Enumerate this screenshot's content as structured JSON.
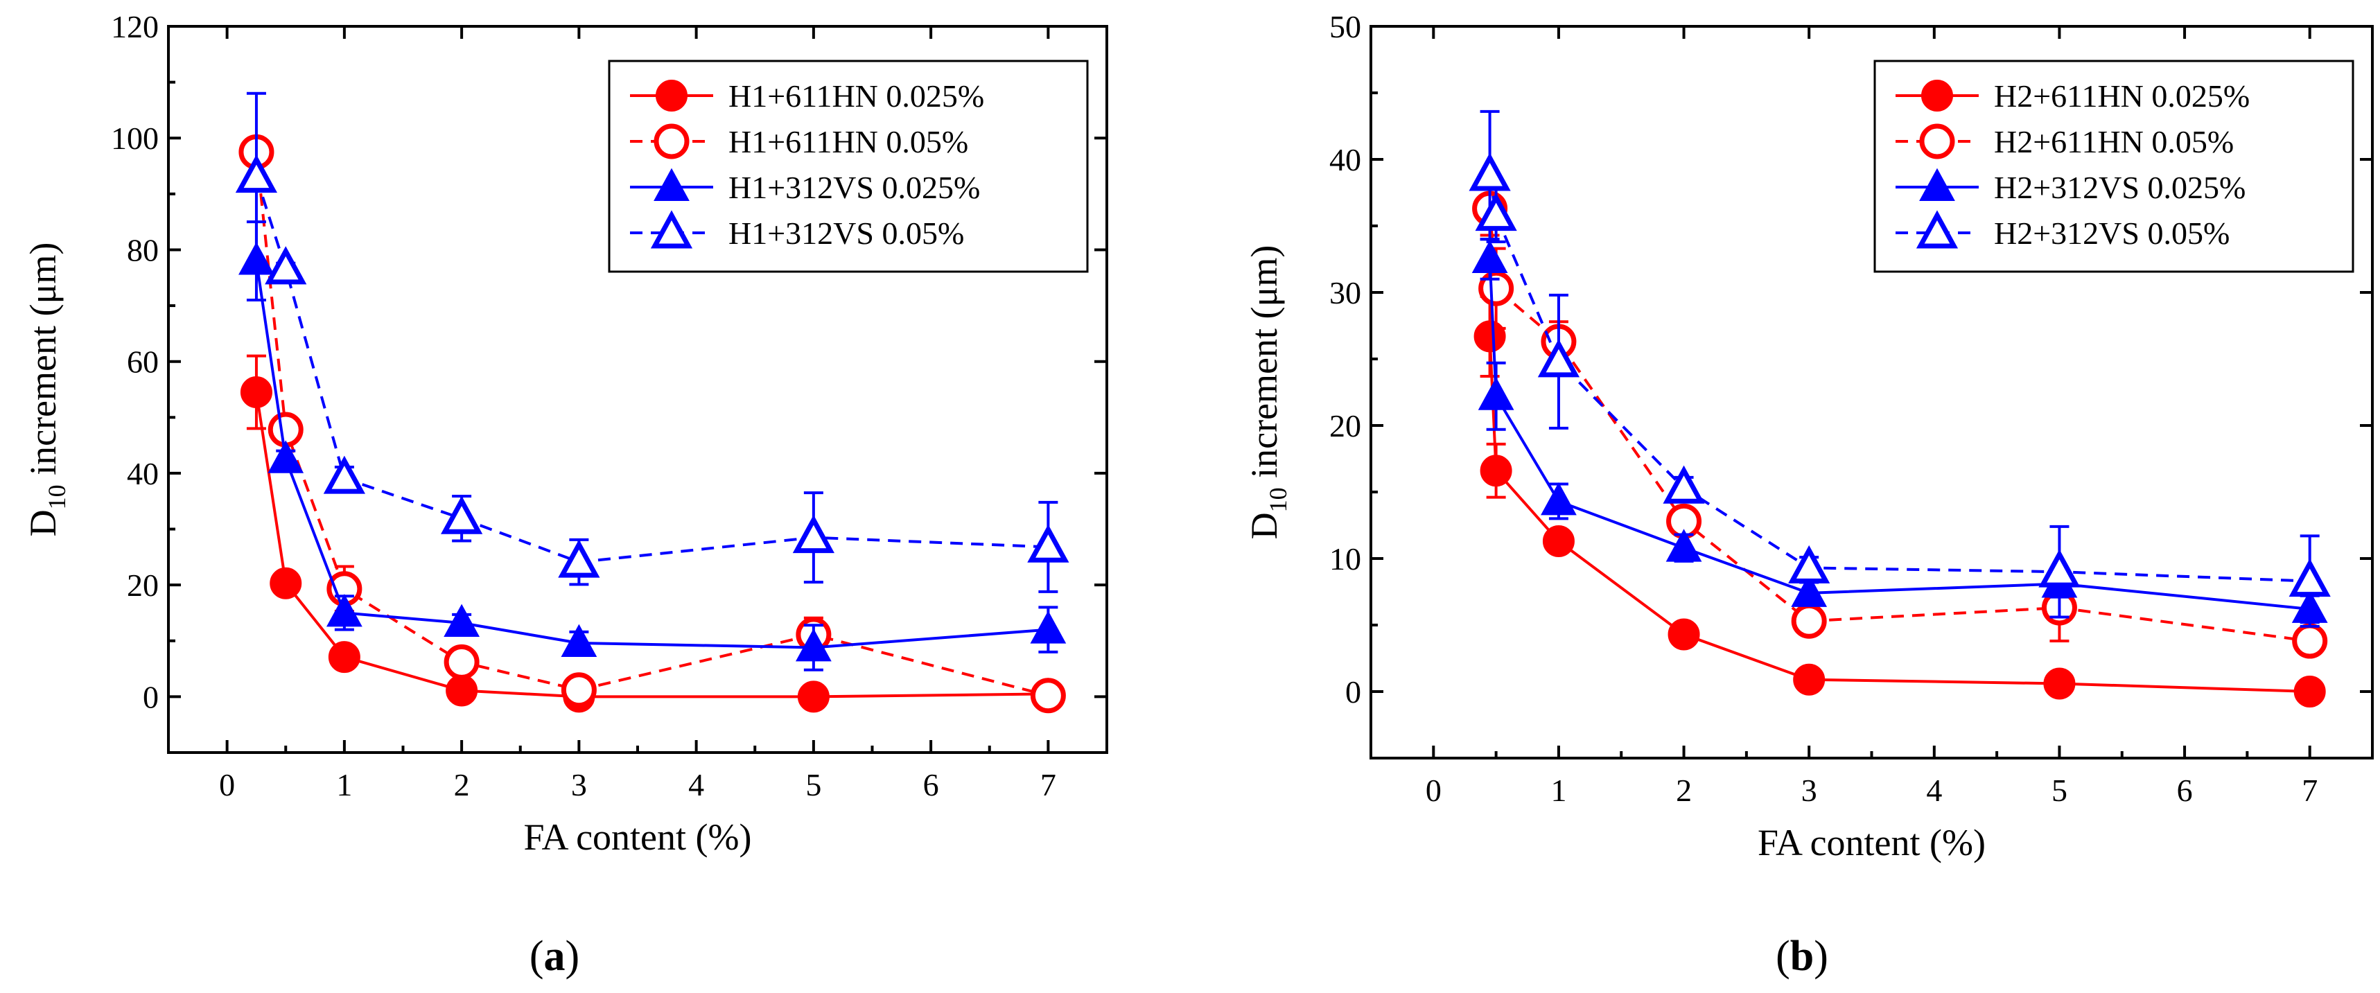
{
  "chart_data": [
    {
      "type": "line",
      "panel_label": "a",
      "title": "",
      "xlabel": "FA content (%)",
      "ylabel_main": "D",
      "ylabel_sub": "10",
      "ylabel_rest": " increment (μm)",
      "xlim": [
        -0.5,
        7.5
      ],
      "ylim": [
        -10,
        120
      ],
      "xticks": [
        0,
        1,
        2,
        3,
        4,
        5,
        6,
        7
      ],
      "yticks": [
        0,
        20,
        40,
        60,
        80,
        100,
        120
      ],
      "legend_position": "top-right",
      "series": [
        {
          "name": "H1+611HN 0.025%",
          "color": "#ff0000",
          "marker": "circle-filled",
          "dash": "solid",
          "x": [
            0.25,
            0.5,
            1,
            2,
            3,
            5,
            7
          ],
          "y": [
            54.5,
            20.3,
            7.1,
            1.1,
            0,
            0,
            0.5
          ],
          "err": [
            6.5,
            1.0,
            1.0,
            0.8,
            0.5,
            0.5,
            1.0
          ]
        },
        {
          "name": "H1+611HN 0.05%",
          "color": "#ff0000",
          "marker": "circle-open",
          "dash": "dashed",
          "x": [
            0.25,
            0.5,
            1,
            2,
            3,
            5,
            7
          ],
          "y": [
            97.5,
            47.8,
            19.3,
            6.2,
            1.2,
            11.1,
            0.2
          ],
          "err": [
            2.0,
            2.0,
            4.0,
            1.5,
            1.0,
            3.0,
            2.0
          ]
        },
        {
          "name": "H1+312VS 0.025%",
          "color": "#0000ff",
          "marker": "triangle-filled",
          "dash": "solid",
          "x": [
            0.25,
            0.5,
            1,
            2,
            3,
            5,
            7
          ],
          "y": [
            78.0,
            42.5,
            15.0,
            13.2,
            9.6,
            8.8,
            12.0
          ],
          "err": [
            7.0,
            1.5,
            3.0,
            1.5,
            2.0,
            4.0,
            4.0
          ]
        },
        {
          "name": "H1+312VS 0.05%",
          "color": "#0000ff",
          "marker": "triangle-open",
          "dash": "dashed",
          "x": [
            0.25,
            0.5,
            1,
            2,
            3,
            5,
            7
          ],
          "y": [
            93.0,
            76.6,
            39.1,
            31.9,
            24.1,
            28.5,
            26.8
          ],
          "err": [
            15.0,
            1.0,
            2.0,
            4.0,
            4.0,
            8.0,
            8.0
          ]
        }
      ]
    },
    {
      "type": "line",
      "panel_label": "b",
      "title": "",
      "xlabel": "FA content (%)",
      "ylabel_main": "D",
      "ylabel_sub": "10",
      "ylabel_rest": " increment (μm)",
      "xlim": [
        -0.5,
        7.5
      ],
      "ylim": [
        -5,
        50
      ],
      "xticks": [
        0,
        1,
        2,
        3,
        4,
        5,
        6,
        7
      ],
      "yticks": [
        0,
        10,
        20,
        30,
        40,
        50
      ],
      "legend_position": "top-right",
      "series": [
        {
          "name": "H2+611HN 0.025%",
          "color": "#ff0000",
          "marker": "circle-filled",
          "dash": "solid",
          "x": [
            0.45,
            0.5,
            1,
            2,
            3,
            5,
            7
          ],
          "y": [
            26.7,
            16.6,
            11.3,
            4.3,
            0.9,
            0.6,
            0
          ],
          "err": [
            3.0,
            2.0,
            0.5,
            0.3,
            0.3,
            0.3,
            0.3
          ]
        },
        {
          "name": "H2+611HN 0.05%",
          "color": "#ff0000",
          "marker": "circle-open",
          "dash": "dashed",
          "x": [
            0.45,
            0.5,
            1,
            2,
            3,
            5,
            7
          ],
          "y": [
            36.3,
            30.3,
            26.3,
            12.8,
            5.3,
            6.3,
            3.8
          ],
          "err": [
            2.0,
            3.0,
            1.5,
            0.8,
            0.5,
            2.5,
            0.5
          ]
        },
        {
          "name": "H2+312VS 0.025%",
          "color": "#0000ff",
          "marker": "triangle-filled",
          "dash": "solid",
          "x": [
            0.45,
            0.5,
            1,
            2,
            3,
            5,
            7
          ],
          "y": [
            32.5,
            22.2,
            14.3,
            10.8,
            7.4,
            8.1,
            6.2
          ],
          "err": [
            1.5,
            2.5,
            1.3,
            1.0,
            0.8,
            1.0,
            1.0
          ]
        },
        {
          "name": "H2+312VS 0.05%",
          "color": "#0000ff",
          "marker": "triangle-open",
          "dash": "dashed",
          "x": [
            0.45,
            0.5,
            1,
            2,
            3,
            5,
            7
          ],
          "y": [
            38.8,
            35.8,
            24.8,
            15.3,
            9.3,
            9.0,
            8.3
          ],
          "err": [
            4.8,
            2.0,
            5.0,
            0.8,
            0.8,
            3.4,
            3.4
          ]
        }
      ]
    }
  ]
}
